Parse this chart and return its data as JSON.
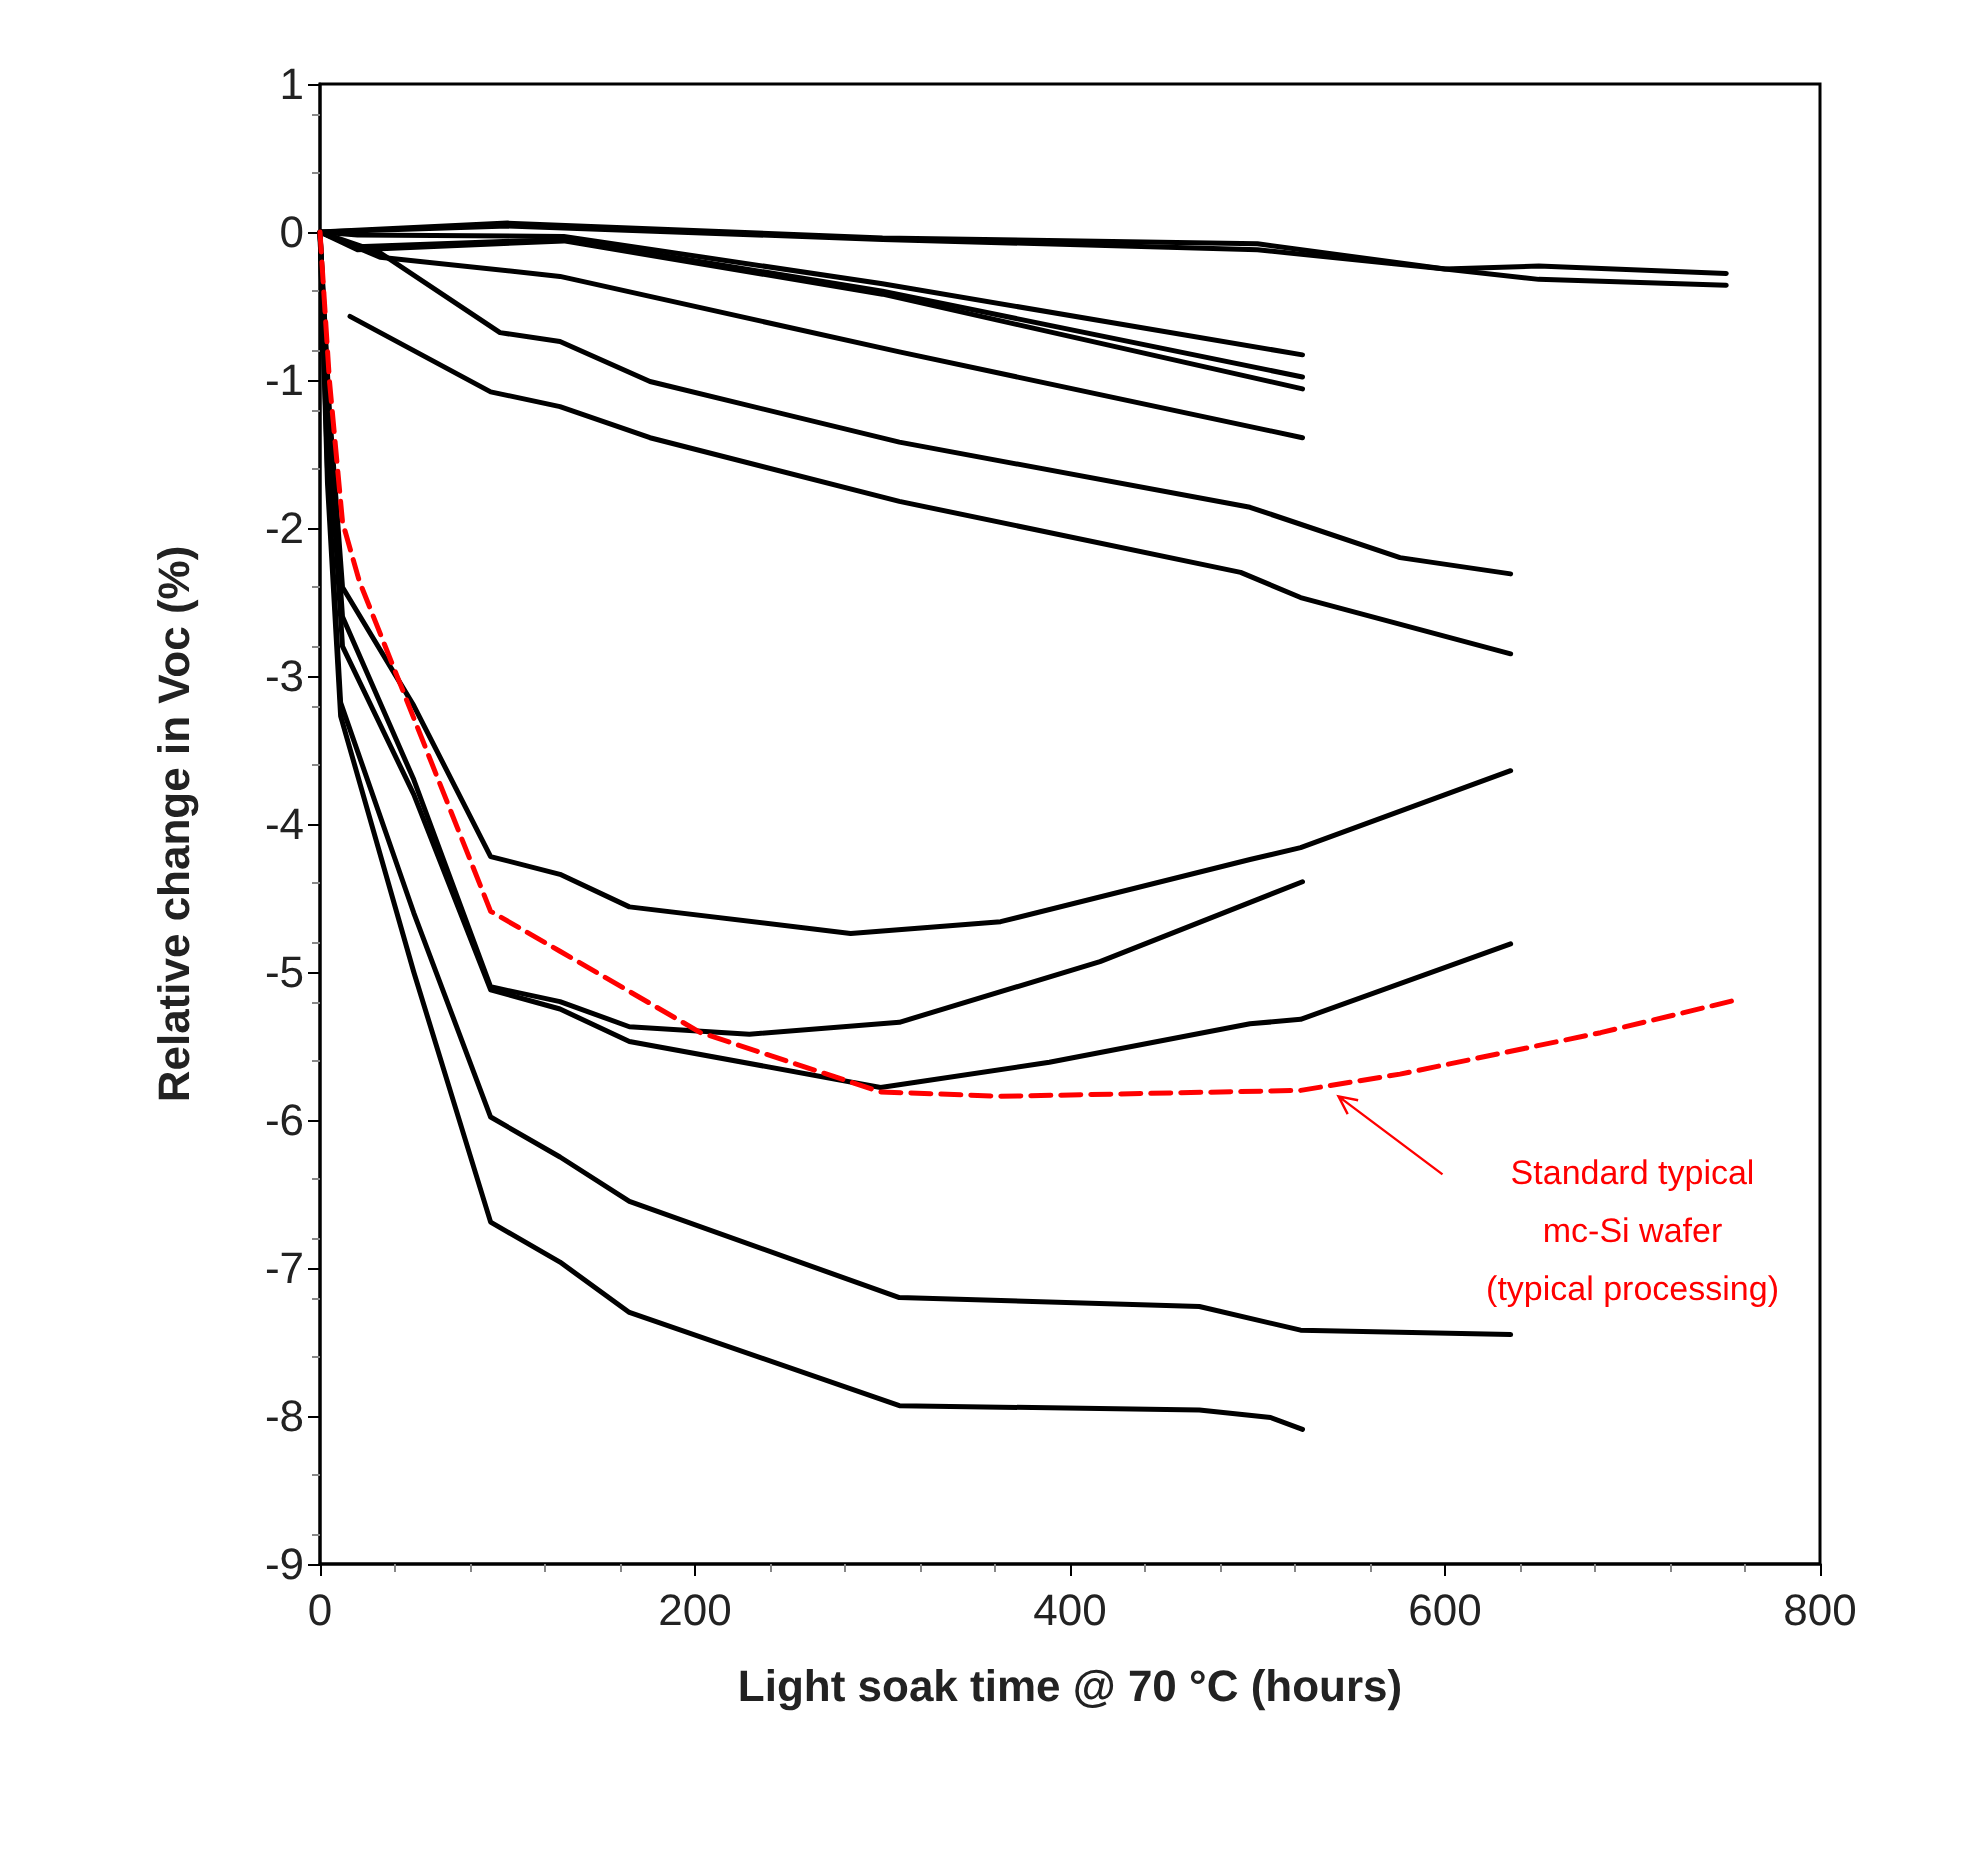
{
  "chart_data": {
    "type": "line",
    "xlabel": "Light soak time @ 70 °C (hours)",
    "ylabel": "Relative change in Voc (%)",
    "xlim": [
      0,
      800
    ],
    "xticks": [
      0,
      200,
      400,
      600,
      800
    ],
    "ylim": [
      -9,
      1
    ],
    "yticks": [
      -9,
      -8,
      -7,
      -6,
      -5,
      -4,
      -3,
      -2,
      -1,
      0,
      1
    ],
    "grid": false,
    "marker": "none",
    "line_style": "solid",
    "annotations": [
      {
        "text": "Standard typical\nmc-Si wafer\n(typical processing)",
        "x": 540,
        "y": -5.8
      }
    ],
    "series": [
      {
        "color": "#000000",
        "x": [
          0,
          100,
          300,
          500,
          600,
          650,
          750
        ],
        "values": [
          0,
          0.06,
          -0.04,
          -0.08,
          -0.25,
          -0.23,
          -0.28
        ]
      },
      {
        "color": "#000000",
        "x": [
          0,
          100,
          300,
          500,
          600,
          650,
          750
        ],
        "values": [
          0,
          0.04,
          -0.05,
          -0.12,
          -0.25,
          -0.32,
          -0.36
        ]
      },
      {
        "color": "#000000",
        "x": [
          0,
          20,
          130,
          300,
          524
        ],
        "values": [
          0,
          -0.02,
          -0.03,
          -0.35,
          -0.83
        ]
      },
      {
        "color": "#000000",
        "x": [
          0,
          20,
          130,
          300,
          524
        ],
        "values": [
          0,
          -0.1,
          -0.05,
          -0.4,
          -0.98
        ]
      },
      {
        "color": "#000000",
        "x": [
          0,
          20,
          130,
          300,
          524
        ],
        "values": [
          0,
          -0.12,
          -0.06,
          -0.42,
          -1.06
        ]
      },
      {
        "color": "#000000",
        "x": [
          0,
          32,
          128,
          309,
          524
        ],
        "values": [
          0,
          -0.17,
          -0.3,
          -0.81,
          -1.39
        ]
      },
      {
        "color": "#000000",
        "x": [
          0,
          32,
          96,
          128,
          176,
          309,
          496,
          576,
          635
        ],
        "values": [
          0,
          -0.14,
          -0.68,
          -0.74,
          -1.01,
          -1.42,
          -1.86,
          -2.2,
          -2.31
        ]
      },
      {
        "color": "#000000",
        "x": [
          16,
          91,
          128,
          176,
          309,
          491,
          523,
          635
        ],
        "values": [
          -0.57,
          -1.08,
          -1.18,
          -1.39,
          -1.82,
          -2.3,
          -2.47,
          -2.85
        ]
      },
      {
        "color": "#000000",
        "x": [
          0,
          5,
          12,
          50,
          91,
          128,
          165,
          283,
          363,
          496,
          523,
          635
        ],
        "values": [
          0,
          -1.2,
          -2.4,
          -3.2,
          -4.22,
          -4.34,
          -4.56,
          -4.74,
          -4.66,
          -4.24,
          -4.16,
          -3.64
        ]
      },
      {
        "color": "#000000",
        "x": [
          0,
          5,
          12,
          50,
          91,
          128,
          165,
          229,
          309,
          416,
          524
        ],
        "values": [
          0,
          -1.3,
          -2.6,
          -3.7,
          -5.1,
          -5.2,
          -5.37,
          -5.42,
          -5.34,
          -4.93,
          -4.39
        ]
      },
      {
        "color": "#000000",
        "x": [
          0,
          5,
          12,
          50,
          91,
          128,
          165,
          299,
          389,
          496,
          523,
          635
        ],
        "values": [
          0,
          -1.4,
          -2.8,
          -3.8,
          -5.12,
          -5.25,
          -5.47,
          -5.78,
          -5.61,
          -5.35,
          -5.32,
          -4.81
        ]
      },
      {
        "color": "#000000",
        "x": [
          0,
          4,
          11,
          50,
          91,
          128,
          165,
          309,
          469,
          523,
          635
        ],
        "values": [
          0,
          -1.6,
          -3.18,
          -4.6,
          -5.98,
          -6.25,
          -6.55,
          -7.2,
          -7.26,
          -7.42,
          -7.45
        ]
      },
      {
        "color": "#000000",
        "x": [
          0,
          4,
          11,
          50,
          91,
          128,
          165,
          309,
          469,
          507,
          524
        ],
        "values": [
          0,
          -1.7,
          -3.27,
          -5.0,
          -6.69,
          -6.96,
          -7.3,
          -7.93,
          -7.96,
          -8.01,
          -8.09
        ]
      },
      {
        "color": "#ff0000",
        "line_style": "dashed",
        "x": [
          0,
          5,
          12,
          21,
          91,
          128,
          203,
          299,
          363,
          523,
          576,
          683,
          755
        ],
        "values": [
          0,
          -1.0,
          -1.96,
          -2.36,
          -4.59,
          -4.86,
          -5.41,
          -5.81,
          -5.84,
          -5.8,
          -5.69,
          -5.41,
          -5.19
        ]
      }
    ]
  }
}
